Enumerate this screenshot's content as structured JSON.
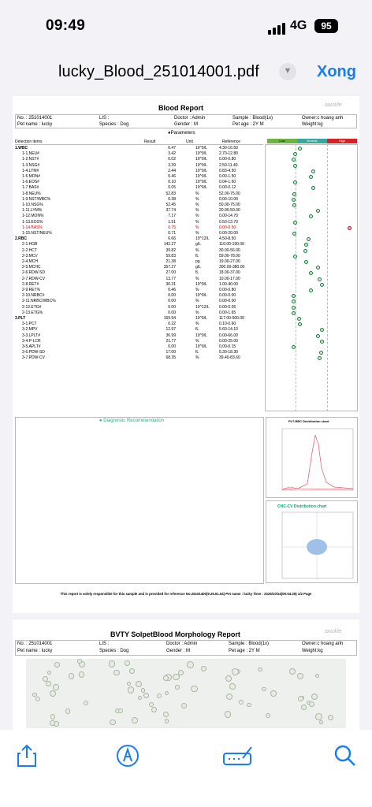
{
  "status": {
    "time": "09:49",
    "network": "4G",
    "battery": "95"
  },
  "nav": {
    "title": "lucky_Blood_251014001.pdf",
    "done": "Xong"
  },
  "page1": {
    "title": "Blood Report",
    "logo": "awolife",
    "info": {
      "no": "No. : 251014001",
      "lis": "LIS :",
      "doctor": "Doctor : Admin",
      "sample": "Sample : Blood(1x)",
      "owner": "Owner:c hoang anh",
      "pet_name": "Pet name : lucky",
      "species": "Species : Dog",
      "gender": "Gender : M",
      "pet_age": "Pet age : 2Y  M",
      "weight": "Weight:kg"
    },
    "params_label": "Parameters",
    "col": {
      "items": "Detection items",
      "result": "Result",
      "unit": "Unit",
      "ref": "Reference",
      "low": "Low",
      "normal": "Normal",
      "high": "High"
    },
    "rows": [
      {
        "name": "1.WBC",
        "result": "6.47",
        "unit": "10^9/L",
        "ref": "4.30-16.50",
        "pos": 0.35
      },
      {
        "name": "1-1.NEU#",
        "result": "3.42",
        "unit": "10^9/L",
        "ref": "2.70-12.80",
        "pos": 0.3
      },
      {
        "name": "1-2.NST#",
        "result": "0.02",
        "unit": "10^9/L",
        "ref": "0.00-0.80",
        "pos": 0.28
      },
      {
        "name": "1-3.NSG#",
        "result": "3.39",
        "unit": "10^9/L",
        "ref": "2.50-11.40",
        "pos": 0.3
      },
      {
        "name": "1-4.LYM#",
        "result": "2.44",
        "unit": "10^9/L",
        "ref": "0.83-4.50",
        "pos": 0.5
      },
      {
        "name": "1-5.MON#",
        "result": "0.46",
        "unit": "10^9/L",
        "ref": "0.00-1.50",
        "pos": 0.47
      },
      {
        "name": "1-6.EOS#",
        "result": "0.10",
        "unit": "10^9/L",
        "ref": "0.04-1.60",
        "pos": 0.3
      },
      {
        "name": "1-7.BAS#",
        "result": "0.05",
        "unit": "10^9/L",
        "ref": "0.00-0.12",
        "pos": 0.5
      },
      {
        "name": "1-8.NEU%",
        "result": "52.83",
        "unit": "%",
        "ref": "52.00-75.00",
        "pos": 0.29
      },
      {
        "name": "1-9.NST/WBC%",
        "result": "0.38",
        "unit": "%",
        "ref": "0.00-10.00",
        "pos": 0.28
      },
      {
        "name": "1-10.NSG%",
        "result": "52.45",
        "unit": "%",
        "ref": "50.00-75.00",
        "pos": 0.29
      },
      {
        "name": "1-11.LYM%",
        "result": "37.74",
        "unit": "%",
        "ref": "20.00-50.00",
        "pos": 0.55
      },
      {
        "name": "1-12.MON%",
        "result": "7.17",
        "unit": "%",
        "ref": "0.00-14.70",
        "pos": 0.47
      },
      {
        "name": "1-13.EOS%",
        "result": "1.51",
        "unit": "%",
        "ref": "0.50-13.70",
        "pos": 0.3
      },
      {
        "name": "1-14.BAS%",
        "result": "0.75",
        "unit": "%",
        "ref": "0.00-0.50",
        "pos": 0.9,
        "abnormal": true
      },
      {
        "name": "1-15.NST/NEU%",
        "result": "0.71",
        "unit": "%",
        "ref": "0.00-20.00",
        "pos": 0.29
      },
      {
        "name": "2.RBC",
        "result": "6.66",
        "unit": "10^12/L",
        "ref": "4.50-8.50",
        "pos": 0.45
      },
      {
        "name": "2-1.HGB",
        "result": "142.27",
        "unit": "g/L",
        "ref": "110.00-190.00",
        "pos": 0.42
      },
      {
        "name": "2-2.HCT",
        "result": "39.82",
        "unit": "%",
        "ref": "30.00-56.00",
        "pos": 0.41
      },
      {
        "name": "2-3.MCV",
        "result": "59.83",
        "unit": "fL",
        "ref": "59.00-78.00",
        "pos": 0.3
      },
      {
        "name": "2-4.MCH",
        "result": "21.38",
        "unit": "pg",
        "ref": "19.00-27.00",
        "pos": 0.42
      },
      {
        "name": "2-5.MCHC",
        "result": "357.27",
        "unit": "g/L",
        "ref": "300.00-380.00",
        "pos": 0.55
      },
      {
        "name": "2-6.RDW-SD",
        "result": "27.00",
        "unit": "fL",
        "ref": "18.00-37.00",
        "pos": 0.47
      },
      {
        "name": "2-7.RDW-CV",
        "result": "13.77",
        "unit": "%",
        "ref": "10.00-17.00",
        "pos": 0.57
      },
      {
        "name": "2-8.RET#",
        "result": "30.31",
        "unit": "10^9/L",
        "ref": "1.00-40.00",
        "pos": 0.6
      },
      {
        "name": "2-9.RET%",
        "result": "0.46",
        "unit": "%",
        "ref": "0.00-0.80",
        "pos": 0.47
      },
      {
        "name": "2-10.NRBC#",
        "result": "0.00",
        "unit": "10^9/L",
        "ref": "0.00-0.00",
        "pos": 0.28
      },
      {
        "name": "2-11.NRBC/WBC%",
        "result": "0.00",
        "unit": "%",
        "ref": "0.00-0.00",
        "pos": 0.28
      },
      {
        "name": "2-12.ETG#",
        "result": "0.00",
        "unit": "10^12/L",
        "ref": "0.00-0.05",
        "pos": 0.28
      },
      {
        "name": "2-13.ETG%",
        "result": "0.00",
        "unit": "%",
        "ref": "0.00-1.65",
        "pos": 0.28
      },
      {
        "name": "3.PLT",
        "result": "169.94",
        "unit": "10^9/L",
        "ref": "117.00-500.00",
        "pos": 0.34
      },
      {
        "name": "3-1.PCT",
        "result": "0.22",
        "unit": "%",
        "ref": "0.10-0.60",
        "pos": 0.35
      },
      {
        "name": "3-2.MPV",
        "result": "12.97",
        "unit": "fL",
        "ref": "5.60-14.10",
        "pos": 0.6
      },
      {
        "name": "3-3.LPLT#",
        "result": "36.99",
        "unit": "10^9/L",
        "ref": "0.00-66.00",
        "pos": 0.55
      },
      {
        "name": "3-4.P-LCR",
        "result": "21.77",
        "unit": "%",
        "ref": "0.00-25.00",
        "pos": 0.6
      },
      {
        "name": "3-5.APLT#",
        "result": "0.00",
        "unit": "10^9/L",
        "ref": "0.00-0.15",
        "pos": 0.28
      },
      {
        "name": "3-6.PDW-SD",
        "result": "17.00",
        "unit": "fL",
        "ref": "5.30-18.30",
        "pos": 0.59
      },
      {
        "name": "3-7.PDW-CV",
        "result": "68.35",
        "unit": "%",
        "ref": "39.40-83.60",
        "pos": 0.57
      }
    ],
    "diag_label": "Diagnostic Recommendation",
    "chart1_title": "PLT-RBC Distribution chart",
    "chart2_title": "CHC-CV Distribution chart",
    "footer": "This report is solely responsible for this sample and is provided for reference  No.25101400(9.25.01.04)  Pet name : lucky  Time : 2025/10/14(09:04:25)  1/2 Page"
  },
  "page2": {
    "title": "BVTY SolpetBlood Morphology Report",
    "logo": "awolife",
    "info": {
      "no": "No. : 251014001",
      "lis": "LIS :",
      "doctor": "Doctor : Admin",
      "sample": "Sample : Blood(1x)",
      "owner": "Owner:c hoang anh",
      "pet_name": "Pet name : lucky",
      "species": "Species : Dog",
      "gender": "Gender : M",
      "pet_age": "Pet age : 2Y  M",
      "weight": "Weight:kg"
    }
  },
  "toolbar": {
    "share": "share-icon",
    "markup": "markup-icon",
    "sign": "signature-icon",
    "search": "search-icon"
  }
}
